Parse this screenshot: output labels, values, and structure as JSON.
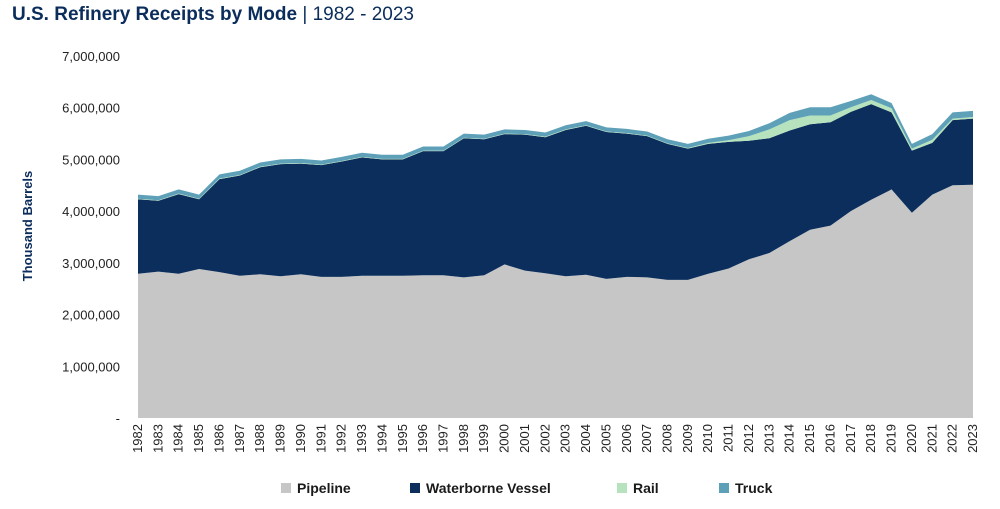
{
  "title": {
    "main": "U.S. Refinery Receipts by Mode",
    "sep": " | ",
    "sub": "1982 - 2023"
  },
  "colors": {
    "Pipeline": "#c6c6c6",
    "Waterborne Vessel": "#0b2e5c",
    "Rail": "#b6e3bd",
    "Truck": "#5da0b8"
  },
  "chart_data": {
    "type": "area",
    "stacked": true,
    "title": "U.S. Refinery Receipts by Mode | 1982 - 2023",
    "xlabel": "",
    "ylabel": "Thousand Barrels",
    "ylim": [
      0,
      7000000
    ],
    "yticks": [
      0,
      1000000,
      2000000,
      3000000,
      4000000,
      5000000,
      6000000,
      7000000
    ],
    "ytick_labels": [
      "-",
      "1,000,000",
      "2,000,000",
      "3,000,000",
      "4,000,000",
      "5,000,000",
      "6,000,000",
      "7,000,000"
    ],
    "grid": false,
    "legend": "bottom",
    "x": [
      "1982",
      "1983",
      "1984",
      "1985",
      "1986",
      "1987",
      "1988",
      "1989",
      "1990",
      "1991",
      "1992",
      "1993",
      "1994",
      "1995",
      "1996",
      "1997",
      "1998",
      "1999",
      "2000",
      "2001",
      "2002",
      "2003",
      "2004",
      "2005",
      "2006",
      "2007",
      "2008",
      "2009",
      "2010",
      "2011",
      "2012",
      "2013",
      "2014",
      "2015",
      "2016",
      "2017",
      "2018",
      "2019",
      "2020",
      "2021",
      "2022",
      "2023"
    ],
    "series": [
      {
        "name": "Pipeline",
        "values": [
          2790000,
          2830000,
          2790000,
          2880000,
          2820000,
          2750000,
          2780000,
          2740000,
          2780000,
          2730000,
          2730000,
          2750000,
          2750000,
          2750000,
          2760000,
          2760000,
          2720000,
          2760000,
          2970000,
          2850000,
          2800000,
          2740000,
          2770000,
          2690000,
          2730000,
          2720000,
          2670000,
          2670000,
          2790000,
          2890000,
          3070000,
          3190000,
          3420000,
          3640000,
          3720000,
          4000000,
          4220000,
          4420000,
          3970000,
          4320000,
          4500000,
          4510000
        ]
      },
      {
        "name": "Waterborne Vessel",
        "values": [
          1440000,
          1370000,
          1540000,
          1350000,
          1800000,
          1940000,
          2070000,
          2170000,
          2140000,
          2160000,
          2230000,
          2290000,
          2250000,
          2250000,
          2400000,
          2400000,
          2690000,
          2630000,
          2520000,
          2630000,
          2630000,
          2830000,
          2880000,
          2840000,
          2770000,
          2730000,
          2630000,
          2540000,
          2510000,
          2450000,
          2290000,
          2220000,
          2140000,
          2040000,
          2000000,
          1920000,
          1850000,
          1490000,
          1200000,
          1000000,
          1260000,
          1280000
        ]
      },
      {
        "name": "Rail",
        "values": [
          10000,
          10000,
          10000,
          10000,
          10000,
          10000,
          10000,
          10000,
          10000,
          10000,
          10000,
          10000,
          10000,
          10000,
          10000,
          10000,
          10000,
          10000,
          10000,
          10000,
          10000,
          10000,
          10000,
          10000,
          10000,
          10000,
          10000,
          10000,
          20000,
          30000,
          90000,
          170000,
          200000,
          170000,
          130000,
          90000,
          80000,
          80000,
          40000,
          60000,
          30000,
          30000
        ]
      },
      {
        "name": "Truck",
        "values": [
          80000,
          80000,
          80000,
          80000,
          80000,
          80000,
          80000,
          80000,
          80000,
          80000,
          80000,
          80000,
          80000,
          80000,
          80000,
          80000,
          80000,
          80000,
          80000,
          80000,
          80000,
          80000,
          80000,
          80000,
          80000,
          80000,
          80000,
          80000,
          80000,
          90000,
          100000,
          120000,
          140000,
          160000,
          160000,
          120000,
          110000,
          100000,
          90000,
          110000,
          120000,
          120000
        ]
      }
    ]
  },
  "legend": [
    {
      "label": "Pipeline"
    },
    {
      "label": "Waterborne Vessel"
    },
    {
      "label": "Rail"
    },
    {
      "label": "Truck"
    }
  ]
}
